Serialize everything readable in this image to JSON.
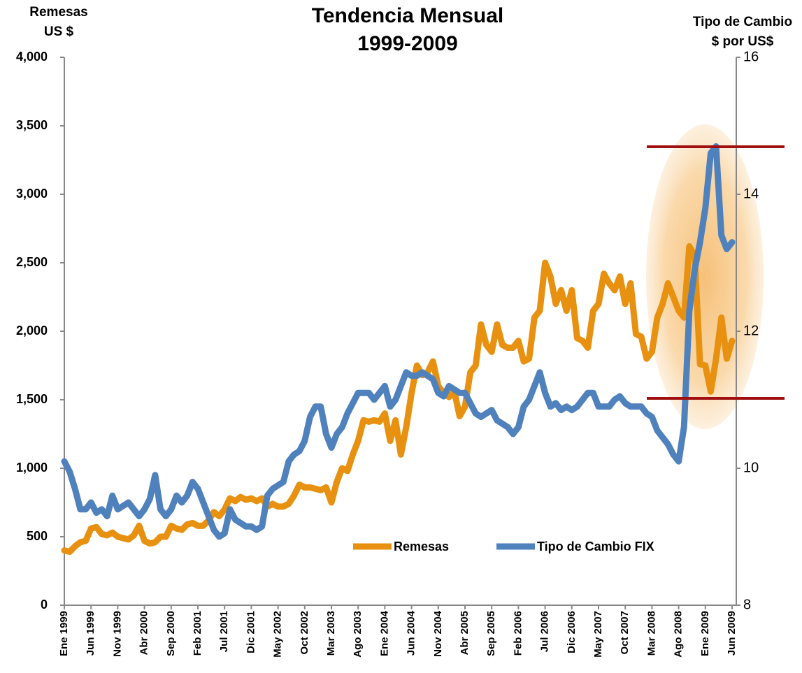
{
  "chart_data": {
    "type": "line",
    "title": [
      "Tendencia Mensual",
      "1999-2009"
    ],
    "y_label": [
      "Remesas",
      "US $"
    ],
    "y2_label": [
      "Tipo de Cambio",
      "$ por US$"
    ],
    "categories": [
      "Ene 1999",
      null,
      null,
      null,
      null,
      "Jun 1999",
      null,
      null,
      null,
      null,
      "Nov 1999",
      null,
      null,
      null,
      null,
      "Abr 2000",
      null,
      null,
      null,
      null,
      "Sep 2000",
      null,
      null,
      null,
      null,
      "Feb 2001",
      null,
      null,
      null,
      null,
      "Jul 2001",
      null,
      null,
      null,
      null,
      "Dic 2001",
      null,
      null,
      null,
      null,
      "May 2002",
      null,
      null,
      null,
      null,
      "Oct 2002",
      null,
      null,
      null,
      null,
      "Mar 2003",
      null,
      null,
      null,
      null,
      "Ago 2003",
      null,
      null,
      null,
      null,
      "Ene 2004",
      null,
      null,
      null,
      null,
      "Jun 2004",
      null,
      null,
      null,
      null,
      "Nov 2004",
      null,
      null,
      null,
      null,
      "Abr 2005",
      null,
      null,
      null,
      null,
      "Sep 2005",
      null,
      null,
      null,
      null,
      "Feb 2006",
      null,
      null,
      null,
      null,
      "Jul 2006",
      null,
      null,
      null,
      null,
      "Dic 2006",
      null,
      null,
      null,
      null,
      "May 2007",
      null,
      null,
      null,
      null,
      "Oct 2007",
      null,
      null,
      null,
      null,
      "Mar 2008",
      null,
      null,
      null,
      null,
      "Ago 2008",
      null,
      null,
      null,
      null,
      "Ene 2009",
      null,
      null,
      null,
      null,
      "Jun 2009"
    ],
    "series": [
      {
        "name": "Remesas",
        "color": "#e8900f",
        "values": [
          400,
          390,
          430,
          460,
          470,
          560,
          570,
          520,
          510,
          530,
          500,
          490,
          480,
          510,
          580,
          470,
          450,
          460,
          500,
          500,
          580,
          560,
          550,
          590,
          600,
          580,
          580,
          620,
          680,
          650,
          700,
          780,
          760,
          790,
          770,
          780,
          760,
          780,
          720,
          740,
          720,
          720,
          740,
          800,
          880,
          860,
          860,
          850,
          840,
          860,
          750,
          900,
          1000,
          980,
          1100,
          1200,
          1350,
          1340,
          1350,
          1340,
          1400,
          1200,
          1350,
          1100,
          1300,
          1550,
          1750,
          1680,
          1700,
          1780,
          1600,
          1550,
          1520,
          1560,
          1380,
          1450,
          1700,
          1750,
          2050,
          1900,
          1850,
          2050,
          1900,
          1880,
          1880,
          1930,
          1780,
          1800,
          2100,
          2150,
          2500,
          2400,
          2200,
          2300,
          2150,
          2300,
          1950,
          1930,
          1880,
          2150,
          2200,
          2420,
          2350,
          2300,
          2400,
          2200,
          2350,
          1980,
          1960,
          1800,
          1850,
          2100,
          2200,
          2350,
          2250,
          2150,
          2100,
          2620,
          2550,
          1760,
          1750,
          1560,
          1800,
          2100,
          1800,
          1930
        ]
      },
      {
        "name": "Tipo de Cambio FIX",
        "color": "#4f81bd",
        "axis": "y2",
        "values": [
          10.1,
          9.95,
          9.7,
          9.4,
          9.4,
          9.5,
          9.35,
          9.4,
          9.3,
          9.6,
          9.4,
          9.45,
          9.5,
          9.4,
          9.3,
          9.4,
          9.55,
          9.9,
          9.4,
          9.3,
          9.4,
          9.6,
          9.5,
          9.6,
          9.8,
          9.7,
          9.5,
          9.3,
          9.1,
          9.0,
          9.05,
          9.4,
          9.25,
          9.2,
          9.15,
          9.15,
          9.1,
          9.15,
          9.6,
          9.7,
          9.75,
          9.8,
          10.1,
          10.2,
          10.25,
          10.4,
          10.75,
          10.9,
          10.9,
          10.5,
          10.3,
          10.5,
          10.6,
          10.8,
          10.95,
          11.1,
          11.1,
          11.1,
          11.0,
          11.1,
          11.2,
          10.9,
          11.0,
          11.2,
          11.4,
          11.35,
          11.35,
          11.4,
          11.35,
          11.3,
          11.1,
          11.05,
          11.2,
          11.15,
          11.1,
          11.1,
          10.95,
          10.8,
          10.75,
          10.8,
          10.85,
          10.7,
          10.65,
          10.6,
          10.5,
          10.6,
          10.9,
          11.0,
          11.2,
          11.4,
          11.1,
          10.9,
          10.95,
          10.85,
          10.9,
          10.85,
          10.9,
          11.0,
          11.1,
          11.1,
          10.9,
          10.9,
          10.9,
          11.0,
          11.05,
          10.95,
          10.9,
          10.9,
          10.9,
          10.8,
          10.75,
          10.55,
          10.45,
          10.35,
          10.2,
          10.1,
          10.6,
          12.3,
          12.9,
          13.3,
          13.8,
          14.6,
          14.7,
          13.4,
          13.2,
          13.3
        ]
      }
    ],
    "ylim": [
      0,
      4000
    ],
    "yticks": [
      0,
      500,
      {
        "value": 1000,
        "label": "1,000"
      },
      {
        "value": 1500,
        "label": "1,500"
      },
      {
        "value": 2000,
        "label": "2,000"
      },
      {
        "value": 2500,
        "label": "2,500"
      },
      {
        "value": 3000,
        "label": "3,000"
      },
      {
        "value": 3500,
        "label": "3,500"
      },
      {
        "value": 4000,
        "label": "4,000"
      }
    ],
    "y2lim": [
      8,
      16
    ],
    "y2ticks": [
      8,
      10,
      12,
      14,
      16
    ],
    "grid": false
  }
}
